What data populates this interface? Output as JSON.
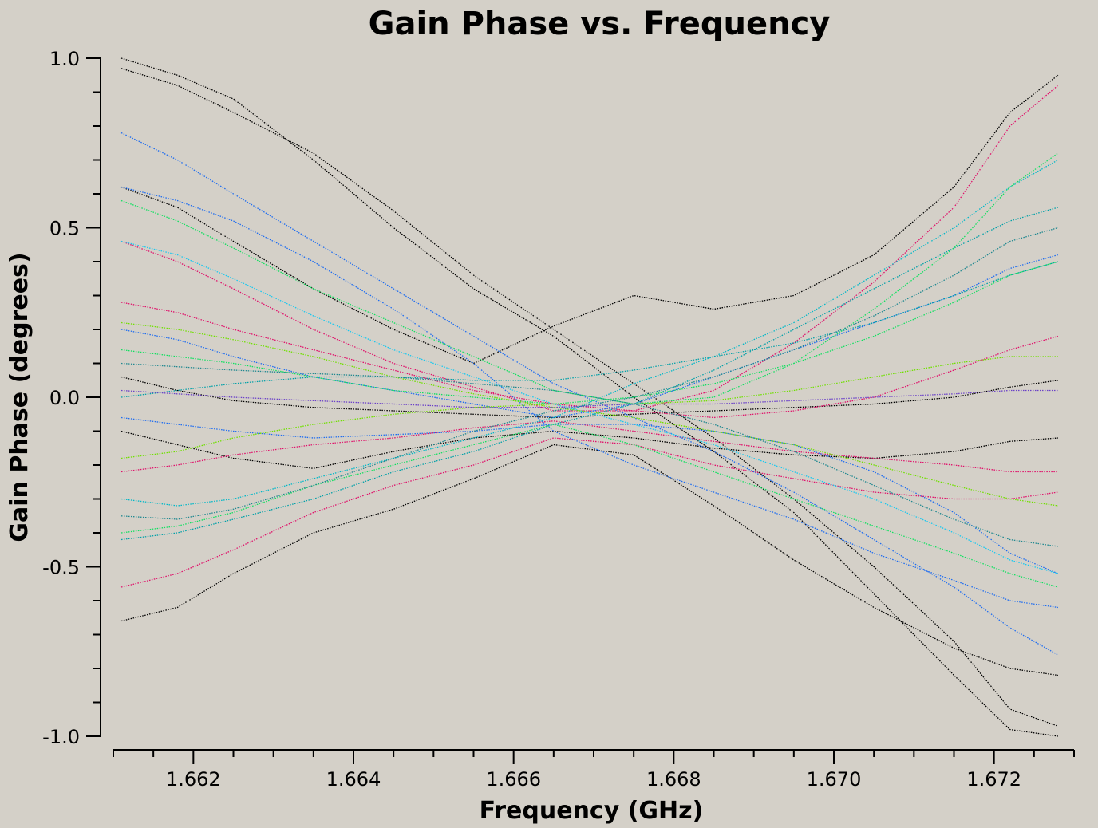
{
  "chart_data": {
    "type": "line",
    "title": "Gain Phase vs. Frequency",
    "xlabel": "Frequency (GHz)",
    "ylabel": "Gain Phase (degrees)",
    "xlim": [
      1.661,
      1.673
    ],
    "ylim": [
      -1.0,
      1.0
    ],
    "x_ticks": [
      1.662,
      1.664,
      1.666,
      1.668,
      1.67,
      1.672
    ],
    "x_tick_labels": [
      "1.662",
      "1.664",
      "1.666",
      "1.668",
      "1.670",
      "1.672"
    ],
    "y_ticks": [
      1.0,
      0.5,
      0.0,
      -0.5,
      -1.0
    ],
    "y_tick_labels": [
      "1.0",
      "0.5",
      "0.0",
      "-0.5",
      "-1.0"
    ],
    "x": [
      1.6611,
      1.6618,
      1.6625,
      1.6635,
      1.6645,
      1.6655,
      1.6665,
      1.6675,
      1.6685,
      1.6695,
      1.6705,
      1.6715,
      1.6722,
      1.6728
    ],
    "series": [
      {
        "color": "#000000",
        "values": [
          0.97,
          0.92,
          0.84,
          0.72,
          0.55,
          0.36,
          0.2,
          0.04,
          -0.12,
          -0.3,
          -0.5,
          -0.72,
          -0.92,
          -0.97
        ]
      },
      {
        "color": "#000000",
        "values": [
          1.0,
          0.95,
          0.88,
          0.7,
          0.5,
          0.32,
          0.18,
          0.0,
          -0.16,
          -0.34,
          -0.58,
          -0.82,
          -0.98,
          -1.0
        ]
      },
      {
        "color": "#000000",
        "values": [
          0.62,
          0.56,
          0.46,
          0.32,
          0.2,
          0.1,
          0.21,
          0.3,
          0.26,
          0.3,
          0.42,
          0.62,
          0.84,
          0.95
        ]
      },
      {
        "color": "#000000",
        "values": [
          -0.66,
          -0.62,
          -0.52,
          -0.4,
          -0.33,
          -0.24,
          -0.14,
          -0.17,
          -0.32,
          -0.48,
          -0.62,
          -0.74,
          -0.8,
          -0.82
        ]
      },
      {
        "color": "#000000",
        "values": [
          0.06,
          0.02,
          -0.01,
          -0.03,
          -0.04,
          -0.05,
          -0.06,
          -0.05,
          -0.04,
          -0.03,
          -0.02,
          0.0,
          0.03,
          0.05
        ]
      },
      {
        "color": "#000000",
        "values": [
          -0.1,
          -0.14,
          -0.18,
          -0.21,
          -0.16,
          -0.12,
          -0.1,
          -0.12,
          -0.15,
          -0.17,
          -0.18,
          -0.16,
          -0.13,
          -0.12
        ]
      },
      {
        "color": "#e0106a",
        "values": [
          0.46,
          0.4,
          0.32,
          0.2,
          0.1,
          0.03,
          -0.04,
          -0.04,
          0.02,
          0.16,
          0.34,
          0.56,
          0.8,
          0.92
        ]
      },
      {
        "color": "#e0106a",
        "values": [
          -0.56,
          -0.52,
          -0.45,
          -0.34,
          -0.26,
          -0.2,
          -0.12,
          -0.14,
          -0.2,
          -0.24,
          -0.28,
          -0.3,
          -0.3,
          -0.28
        ]
      },
      {
        "color": "#e0106a",
        "values": [
          0.28,
          0.25,
          0.2,
          0.14,
          0.08,
          0.02,
          -0.02,
          -0.04,
          -0.06,
          -0.04,
          0.0,
          0.08,
          0.14,
          0.18
        ]
      },
      {
        "color": "#e0106a",
        "values": [
          -0.22,
          -0.2,
          -0.17,
          -0.14,
          -0.12,
          -0.09,
          -0.07,
          -0.1,
          -0.13,
          -0.16,
          -0.18,
          -0.2,
          -0.22,
          -0.22
        ]
      },
      {
        "color": "#1e6cf0",
        "values": [
          0.78,
          0.7,
          0.6,
          0.46,
          0.32,
          0.18,
          0.04,
          -0.06,
          -0.16,
          -0.28,
          -0.42,
          -0.56,
          -0.68,
          -0.76
        ]
      },
      {
        "color": "#1e6cf0",
        "values": [
          0.62,
          0.58,
          0.52,
          0.4,
          0.26,
          0.1,
          -0.1,
          -0.2,
          -0.28,
          -0.36,
          -0.46,
          -0.54,
          -0.6,
          -0.62
        ]
      },
      {
        "color": "#1e6cf0",
        "values": [
          0.2,
          0.17,
          0.12,
          0.06,
          0.02,
          -0.02,
          -0.06,
          -0.02,
          0.06,
          0.14,
          0.22,
          0.3,
          0.38,
          0.42
        ]
      },
      {
        "color": "#1e6cf0",
        "values": [
          -0.06,
          -0.08,
          -0.1,
          -0.12,
          -0.11,
          -0.1,
          -0.08,
          -0.08,
          -0.1,
          -0.14,
          -0.22,
          -0.34,
          -0.46,
          -0.52
        ]
      },
      {
        "color": "#18c8f0",
        "values": [
          0.46,
          0.42,
          0.35,
          0.24,
          0.14,
          0.06,
          -0.02,
          -0.08,
          -0.14,
          -0.22,
          -0.3,
          -0.4,
          -0.48,
          -0.52
        ]
      },
      {
        "color": "#00b8c8",
        "values": [
          -0.3,
          -0.32,
          -0.3,
          -0.24,
          -0.18,
          -0.12,
          -0.06,
          0.04,
          0.12,
          0.22,
          0.36,
          0.5,
          0.62,
          0.7
        ]
      },
      {
        "color": "#00a0a8",
        "values": [
          0.0,
          0.02,
          0.04,
          0.06,
          0.06,
          0.05,
          0.05,
          0.08,
          0.12,
          0.16,
          0.22,
          0.3,
          0.36,
          0.4
        ]
      },
      {
        "color": "#00a0a8",
        "values": [
          -0.42,
          -0.4,
          -0.36,
          -0.3,
          -0.22,
          -0.16,
          -0.08,
          -0.02,
          0.08,
          0.2,
          0.32,
          0.44,
          0.52,
          0.56
        ]
      },
      {
        "color": "#10e060",
        "values": [
          0.58,
          0.52,
          0.44,
          0.32,
          0.22,
          0.12,
          0.02,
          -0.02,
          0.0,
          0.1,
          0.26,
          0.44,
          0.62,
          0.72
        ]
      },
      {
        "color": "#10e060",
        "values": [
          -0.4,
          -0.38,
          -0.34,
          -0.26,
          -0.2,
          -0.14,
          -0.08,
          -0.14,
          -0.22,
          -0.3,
          -0.38,
          -0.46,
          -0.52,
          -0.56
        ]
      },
      {
        "color": "#10e060",
        "values": [
          0.14,
          0.12,
          0.1,
          0.06,
          0.02,
          0.0,
          -0.02,
          0.0,
          0.04,
          0.1,
          0.18,
          0.28,
          0.36,
          0.4
        ]
      },
      {
        "color": "#70e000",
        "values": [
          0.22,
          0.2,
          0.17,
          0.12,
          0.06,
          0.01,
          -0.03,
          -0.06,
          -0.1,
          -0.14,
          -0.2,
          -0.26,
          -0.3,
          -0.32
        ]
      },
      {
        "color": "#70e000",
        "values": [
          -0.18,
          -0.16,
          -0.12,
          -0.08,
          -0.05,
          -0.03,
          -0.02,
          -0.02,
          -0.01,
          0.02,
          0.06,
          0.1,
          0.12,
          0.12
        ]
      },
      {
        "color": "#208890",
        "values": [
          -0.35,
          -0.36,
          -0.33,
          -0.26,
          -0.18,
          -0.1,
          -0.04,
          0.0,
          0.06,
          0.14,
          0.24,
          0.36,
          0.46,
          0.5
        ]
      },
      {
        "color": "#208890",
        "values": [
          0.1,
          0.09,
          0.08,
          0.07,
          0.06,
          0.04,
          0.02,
          -0.02,
          -0.08,
          -0.16,
          -0.26,
          -0.36,
          -0.42,
          -0.44
        ]
      },
      {
        "color": "#6a40c8",
        "values": [
          0.02,
          0.01,
          0.0,
          -0.01,
          -0.02,
          -0.03,
          -0.03,
          -0.02,
          -0.02,
          -0.01,
          0.0,
          0.01,
          0.02,
          0.02
        ]
      }
    ]
  }
}
